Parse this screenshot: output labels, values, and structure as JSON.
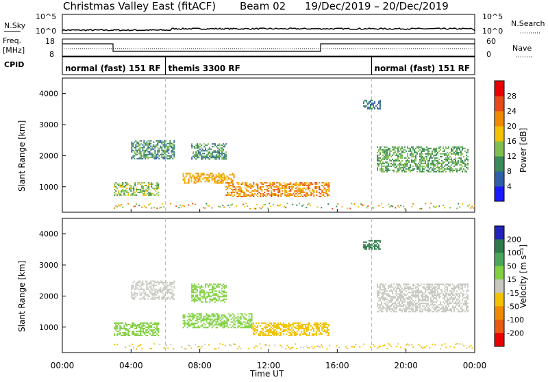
{
  "title": {
    "station": "Christmas Valley East (fitACF)",
    "beam": "Beam 02",
    "dates": "19/Dec/2019 – 20/Dec/2019"
  },
  "side_labels": {
    "nsky": "N.Sky",
    "freq_line1": "Freq.",
    "freq_line2": "[MHz]",
    "cpid": "CPID",
    "nsearch": "N.Search",
    "nave": "Nave"
  },
  "noise_panel": {
    "y_left_top": "10^5",
    "y_left_bottom": "10^0",
    "y_right_top": "10^5",
    "y_right_bottom": "10^0"
  },
  "freq_panel": {
    "left_ticks": [
      "18",
      "8"
    ],
    "right_ticks": [
      "60",
      "0"
    ]
  },
  "cpid_segments": [
    {
      "label": "normal (fast) 151 RF",
      "start_hour": 0,
      "end_hour": 6
    },
    {
      "label": "themis 3300 RF",
      "start_hour": 6,
      "end_hour": 18
    },
    {
      "label": "normal (fast) 151 RF",
      "start_hour": 18,
      "end_hour": 24
    }
  ],
  "x_axis": {
    "label": "Time UT",
    "ticks": [
      "00:00",
      "04:00",
      "08:00",
      "12:00",
      "16:00",
      "20:00",
      "00:00"
    ]
  },
  "y_axis": {
    "label": "Slant Range [km]",
    "ticks": [
      "1000",
      "2000",
      "3000",
      "4000"
    ]
  },
  "power_colorbar": {
    "label": "Power [dB]",
    "ticks": [
      "4",
      "8",
      "12",
      "16",
      "20",
      "24",
      "28"
    ],
    "colors": [
      "#1a1aff",
      "#2f5fa8",
      "#3a8a5a",
      "#7fbf4f",
      "#f2c200",
      "#f08a00",
      "#e8491a",
      "#e80000"
    ]
  },
  "velocity_colorbar": {
    "label": "Velocity [m s⁻¹]",
    "ticks": [
      "200",
      "100",
      "50",
      "15",
      "-15",
      "-50",
      "-100",
      "-200"
    ],
    "colors": [
      "#2222bb",
      "#2f7a4a",
      "#4aa65a",
      "#80d040",
      "#c8c8c0",
      "#f2c200",
      "#f08a00",
      "#e85a10",
      "#e80000"
    ]
  },
  "chart_data": {
    "type": "heatmap",
    "x_range_hours": [
      0,
      24
    ],
    "y_range_km": [
      180,
      4500
    ],
    "dashed_marker_hours": [
      6,
      18
    ],
    "power_regions": [
      {
        "t0": 3.0,
        "t1": 5.6,
        "r0": 750,
        "r1": 1150,
        "value_db": 14
      },
      {
        "t0": 7.0,
        "t1": 10.0,
        "r0": 1100,
        "r1": 1450,
        "value_db": 20
      },
      {
        "t0": 9.5,
        "t1": 15.5,
        "r0": 700,
        "r1": 1150,
        "value_db": 22
      },
      {
        "t0": 4.0,
        "t1": 6.5,
        "r0": 1900,
        "r1": 2500,
        "value_db": 10
      },
      {
        "t0": 7.5,
        "t1": 9.5,
        "r0": 1900,
        "r1": 2400,
        "value_db": 10
      },
      {
        "t0": 17.5,
        "t1": 18.5,
        "r0": 3500,
        "r1": 3800,
        "value_db": 8
      },
      {
        "t0": 18.3,
        "t1": 23.6,
        "r0": 1500,
        "r1": 2300,
        "value_db": 12
      }
    ],
    "velocity_regions": [
      {
        "t0": 3.0,
        "t1": 5.6,
        "r0": 750,
        "r1": 1150,
        "value_ms": 30
      },
      {
        "t0": 7.0,
        "t1": 11.0,
        "r0": 1000,
        "r1": 1450,
        "value_ms": 30
      },
      {
        "t0": 11.0,
        "t1": 15.5,
        "r0": 750,
        "r1": 1150,
        "value_ms": -40
      },
      {
        "t0": 4.0,
        "t1": 6.5,
        "r0": 1900,
        "r1": 2500,
        "value_ms": 0
      },
      {
        "t0": 7.5,
        "t1": 9.5,
        "r0": 1800,
        "r1": 2400,
        "value_ms": 30
      },
      {
        "t0": 17.5,
        "t1": 18.5,
        "r0": 3500,
        "r1": 3800,
        "value_ms": 150
      },
      {
        "t0": 18.3,
        "t1": 23.6,
        "r0": 1500,
        "r1": 2400,
        "value_ms": 0
      }
    ]
  }
}
